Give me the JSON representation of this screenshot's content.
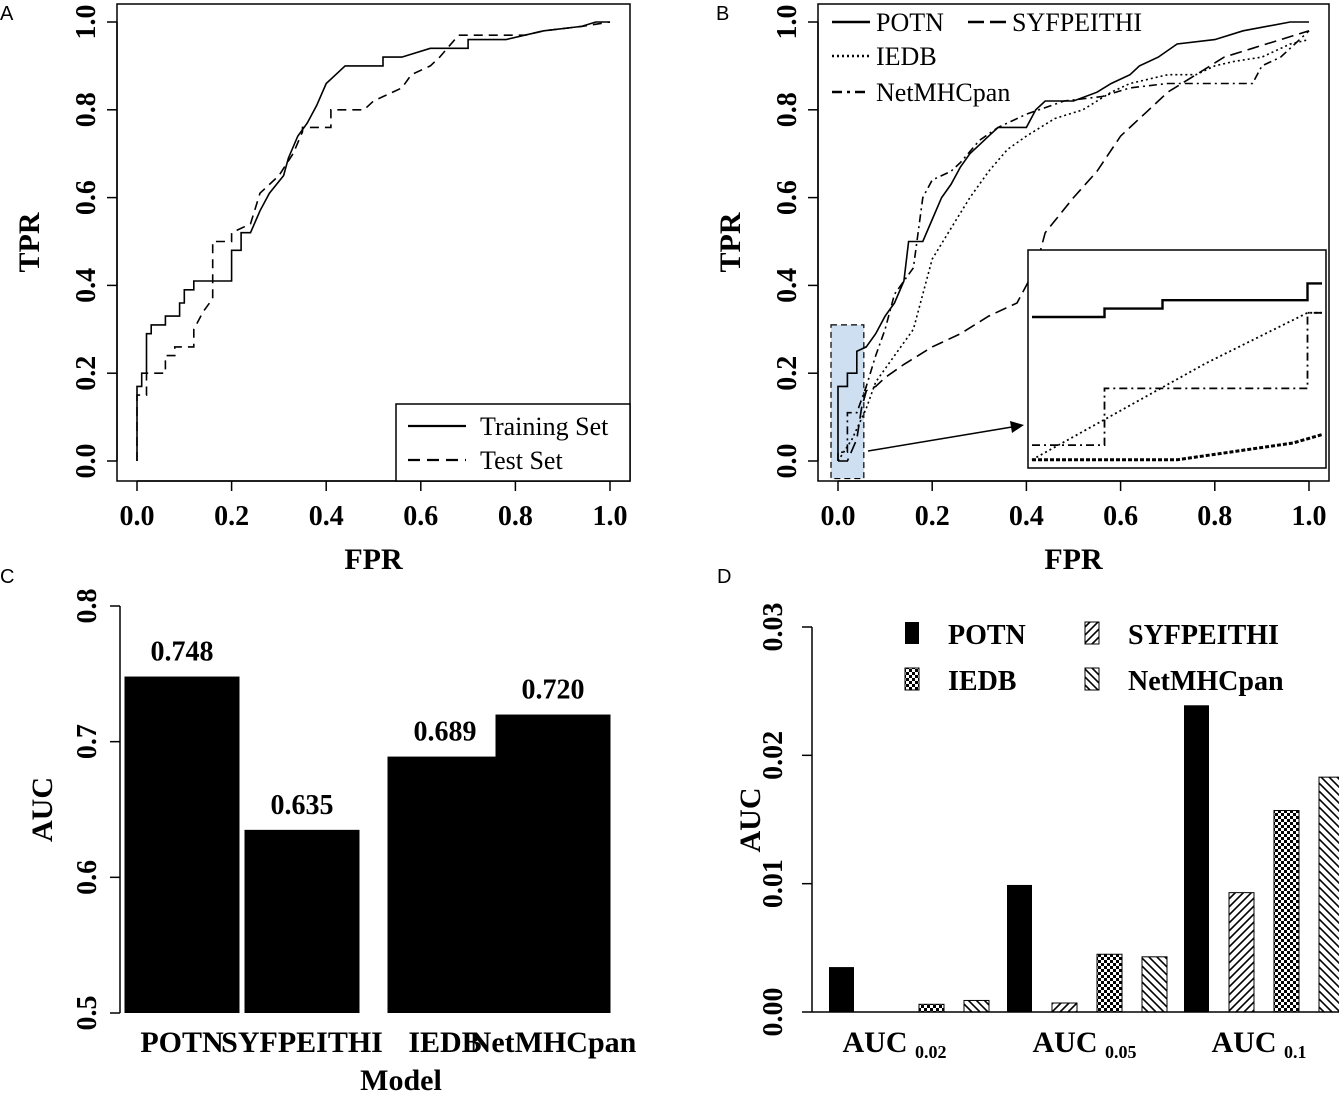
{
  "chart_data": [
    {
      "panel": "A",
      "type": "line",
      "xlabel": "FPR",
      "ylabel": "TPR",
      "xlim": [
        0,
        1
      ],
      "ylim": [
        0,
        1
      ],
      "xticks": [
        "0.0",
        "0.2",
        "0.4",
        "0.6",
        "0.8",
        "1.0"
      ],
      "yticks": [
        "0.0",
        "0.2",
        "0.4",
        "0.6",
        "0.8",
        "1.0"
      ],
      "legend": [
        "Training Set",
        "Test Set"
      ],
      "series": [
        {
          "name": "Training Set",
          "style": "solid",
          "points": [
            [
              0,
              0
            ],
            [
              0,
              0.17
            ],
            [
              0.01,
              0.17
            ],
            [
              0.01,
              0.2
            ],
            [
              0.02,
              0.2
            ],
            [
              0.02,
              0.29
            ],
            [
              0.03,
              0.29
            ],
            [
              0.03,
              0.31
            ],
            [
              0.06,
              0.31
            ],
            [
              0.06,
              0.33
            ],
            [
              0.09,
              0.33
            ],
            [
              0.09,
              0.36
            ],
            [
              0.1,
              0.36
            ],
            [
              0.1,
              0.39
            ],
            [
              0.12,
              0.39
            ],
            [
              0.12,
              0.41
            ],
            [
              0.2,
              0.41
            ],
            [
              0.2,
              0.48
            ],
            [
              0.22,
              0.48
            ],
            [
              0.22,
              0.52
            ],
            [
              0.24,
              0.52
            ],
            [
              0.26,
              0.57
            ],
            [
              0.28,
              0.61
            ],
            [
              0.31,
              0.65
            ],
            [
              0.32,
              0.69
            ],
            [
              0.34,
              0.74
            ],
            [
              0.36,
              0.77
            ],
            [
              0.38,
              0.81
            ],
            [
              0.4,
              0.86
            ],
            [
              0.42,
              0.88
            ],
            [
              0.44,
              0.9
            ],
            [
              0.52,
              0.9
            ],
            [
              0.52,
              0.92
            ],
            [
              0.56,
              0.92
            ],
            [
              0.62,
              0.94
            ],
            [
              0.7,
              0.94
            ],
            [
              0.7,
              0.96
            ],
            [
              0.78,
              0.96
            ],
            [
              0.86,
              0.98
            ],
            [
              0.94,
              0.99
            ],
            [
              0.97,
              1.0
            ],
            [
              1.0,
              1.0
            ]
          ]
        },
        {
          "name": "Test Set",
          "style": "dashed",
          "points": [
            [
              0,
              0
            ],
            [
              0,
              0.15
            ],
            [
              0.02,
              0.15
            ],
            [
              0.02,
              0.2
            ],
            [
              0.06,
              0.2
            ],
            [
              0.06,
              0.24
            ],
            [
              0.08,
              0.24
            ],
            [
              0.08,
              0.26
            ],
            [
              0.12,
              0.26
            ],
            [
              0.12,
              0.3
            ],
            [
              0.14,
              0.34
            ],
            [
              0.16,
              0.37
            ],
            [
              0.16,
              0.5
            ],
            [
              0.2,
              0.5
            ],
            [
              0.2,
              0.52
            ],
            [
              0.24,
              0.54
            ],
            [
              0.26,
              0.61
            ],
            [
              0.3,
              0.65
            ],
            [
              0.33,
              0.7
            ],
            [
              0.35,
              0.75
            ],
            [
              0.35,
              0.76
            ],
            [
              0.41,
              0.76
            ],
            [
              0.41,
              0.8
            ],
            [
              0.48,
              0.8
            ],
            [
              0.5,
              0.82
            ],
            [
              0.56,
              0.85
            ],
            [
              0.58,
              0.88
            ],
            [
              0.62,
              0.9
            ],
            [
              0.64,
              0.92
            ],
            [
              0.68,
              0.97
            ],
            [
              0.72,
              0.97
            ],
            [
              0.82,
              0.97
            ],
            [
              0.86,
              0.98
            ],
            [
              0.94,
              0.99
            ],
            [
              1.0,
              1.0
            ]
          ]
        }
      ]
    },
    {
      "panel": "B",
      "type": "line",
      "xlabel": "FPR",
      "ylabel": "TPR",
      "xlim": [
        0,
        1
      ],
      "ylim": [
        0,
        1
      ],
      "xticks": [
        "0.0",
        "0.2",
        "0.4",
        "0.6",
        "0.8",
        "1.0"
      ],
      "yticks": [
        "0.0",
        "0.2",
        "0.4",
        "0.6",
        "0.8",
        "1.0"
      ],
      "legend": [
        "POTN",
        "SYFPEITHI",
        "IEDB",
        "NetMHCpan"
      ],
      "series": [
        {
          "name": "POTN",
          "style": "solid",
          "points": [
            [
              0,
              0
            ],
            [
              0,
              0.17
            ],
            [
              0.02,
              0.17
            ],
            [
              0.02,
              0.2
            ],
            [
              0.04,
              0.2
            ],
            [
              0.04,
              0.25
            ],
            [
              0.06,
              0.26
            ],
            [
              0.08,
              0.29
            ],
            [
              0.1,
              0.33
            ],
            [
              0.12,
              0.36
            ],
            [
              0.14,
              0.41
            ],
            [
              0.15,
              0.5
            ],
            [
              0.18,
              0.5
            ],
            [
              0.2,
              0.55
            ],
            [
              0.22,
              0.6
            ],
            [
              0.24,
              0.63
            ],
            [
              0.26,
              0.67
            ],
            [
              0.28,
              0.7
            ],
            [
              0.3,
              0.72
            ],
            [
              0.32,
              0.74
            ],
            [
              0.34,
              0.76
            ],
            [
              0.4,
              0.76
            ],
            [
              0.42,
              0.8
            ],
            [
              0.44,
              0.82
            ],
            [
              0.5,
              0.82
            ],
            [
              0.55,
              0.84
            ],
            [
              0.58,
              0.86
            ],
            [
              0.62,
              0.88
            ],
            [
              0.64,
              0.9
            ],
            [
              0.68,
              0.92
            ],
            [
              0.72,
              0.95
            ],
            [
              0.8,
              0.96
            ],
            [
              0.86,
              0.98
            ],
            [
              0.96,
              1.0
            ],
            [
              1.0,
              1.0
            ]
          ]
        },
        {
          "name": "SYFPEITHI",
          "style": "longdash",
          "points": [
            [
              0,
              0
            ],
            [
              0.02,
              0
            ],
            [
              0.04,
              0.05
            ],
            [
              0.05,
              0.12
            ],
            [
              0.06,
              0.16
            ],
            [
              0.08,
              0.17
            ],
            [
              0.1,
              0.19
            ],
            [
              0.14,
              0.22
            ],
            [
              0.2,
              0.26
            ],
            [
              0.26,
              0.29
            ],
            [
              0.32,
              0.33
            ],
            [
              0.38,
              0.36
            ],
            [
              0.42,
              0.44
            ],
            [
              0.44,
              0.52
            ],
            [
              0.5,
              0.6
            ],
            [
              0.55,
              0.66
            ],
            [
              0.6,
              0.74
            ],
            [
              0.66,
              0.8
            ],
            [
              0.7,
              0.84
            ],
            [
              0.76,
              0.88
            ],
            [
              0.82,
              0.92
            ],
            [
              0.88,
              0.94
            ],
            [
              0.94,
              0.96
            ],
            [
              1.0,
              0.98
            ]
          ]
        },
        {
          "name": "IEDB",
          "style": "dotted",
          "points": [
            [
              0,
              0
            ],
            [
              0.03,
              0.05
            ],
            [
              0.06,
              0.12
            ],
            [
              0.08,
              0.18
            ],
            [
              0.12,
              0.24
            ],
            [
              0.16,
              0.3
            ],
            [
              0.18,
              0.38
            ],
            [
              0.2,
              0.46
            ],
            [
              0.24,
              0.53
            ],
            [
              0.28,
              0.6
            ],
            [
              0.32,
              0.66
            ],
            [
              0.36,
              0.71
            ],
            [
              0.4,
              0.74
            ],
            [
              0.46,
              0.78
            ],
            [
              0.52,
              0.8
            ],
            [
              0.58,
              0.84
            ],
            [
              0.62,
              0.86
            ],
            [
              0.7,
              0.88
            ],
            [
              0.76,
              0.88
            ],
            [
              0.8,
              0.9
            ],
            [
              0.84,
              0.91
            ],
            [
              0.9,
              0.92
            ],
            [
              0.96,
              0.95
            ],
            [
              1.0,
              0.96
            ]
          ]
        },
        {
          "name": "NetMHCpan",
          "style": "dotdash",
          "points": [
            [
              0,
              0
            ],
            [
              0,
              0.02
            ],
            [
              0.02,
              0.02
            ],
            [
              0.02,
              0.11
            ],
            [
              0.04,
              0.11
            ],
            [
              0.06,
              0.17
            ],
            [
              0.08,
              0.24
            ],
            [
              0.1,
              0.3
            ],
            [
              0.12,
              0.38
            ],
            [
              0.14,
              0.41
            ],
            [
              0.16,
              0.44
            ],
            [
              0.18,
              0.6
            ],
            [
              0.2,
              0.64
            ],
            [
              0.24,
              0.66
            ],
            [
              0.26,
              0.68
            ],
            [
              0.3,
              0.73
            ],
            [
              0.34,
              0.76
            ],
            [
              0.4,
              0.79
            ],
            [
              0.48,
              0.82
            ],
            [
              0.56,
              0.83
            ],
            [
              0.62,
              0.85
            ],
            [
              0.7,
              0.86
            ],
            [
              0.84,
              0.86
            ],
            [
              0.88,
              0.86
            ],
            [
              0.9,
              0.9
            ],
            [
              0.94,
              0.92
            ],
            [
              0.98,
              0.96
            ],
            [
              1.0,
              0.98
            ]
          ]
        }
      ],
      "inset": {
        "annotation": "zoom of FPR 0.0-0.04 region",
        "series": [
          {
            "name": "POTN",
            "style": "solid",
            "points": [
              [
                0,
                0.7
              ],
              [
                0.25,
                0.7
              ],
              [
                0.25,
                0.74
              ],
              [
                0.45,
                0.74
              ],
              [
                0.45,
                0.78
              ],
              [
                0.95,
                0.78
              ],
              [
                0.95,
                0.86
              ],
              [
                1,
                0.86
              ]
            ]
          },
          {
            "name": "SYFPEITHI",
            "style": "longdash",
            "points": [
              [
                0,
                0.02
              ],
              [
                0.05,
                0.02
              ],
              [
                0.5,
                0.02
              ],
              [
                0.7,
                0.06
              ],
              [
                0.9,
                0.1
              ],
              [
                1,
                0.14
              ]
            ]
          },
          {
            "name": "IEDB",
            "style": "dotted",
            "points": [
              [
                0,
                0.02
              ],
              [
                0.3,
                0.25
              ],
              [
                0.6,
                0.48
              ],
              [
                0.95,
                0.72
              ],
              [
                1,
                0.72
              ]
            ]
          },
          {
            "name": "NetMHCpan",
            "style": "dotdash",
            "points": [
              [
                0,
                0.09
              ],
              [
                0.25,
                0.09
              ],
              [
                0.25,
                0.36
              ],
              [
                0.95,
                0.36
              ],
              [
                0.95,
                0.72
              ],
              [
                1,
                0.72
              ]
            ]
          }
        ]
      }
    },
    {
      "panel": "C",
      "type": "bar",
      "xlabel": "Model",
      "ylabel": "AUC",
      "ylim": [
        0.5,
        0.8
      ],
      "yticks": [
        "0.5",
        "0.6",
        "0.7",
        "0.8"
      ],
      "categories": [
        "POTN",
        "SYFPEITHI",
        "IEDB",
        "NetMHCpan"
      ],
      "values": [
        0.748,
        0.635,
        0.689,
        0.72
      ],
      "data_labels": [
        "0.748",
        "0.635",
        "0.689",
        "0.720"
      ]
    },
    {
      "panel": "D",
      "type": "bar",
      "xlabel": "",
      "ylabel": "AUC",
      "ylim": [
        0,
        0.03
      ],
      "yticks": [
        "0.00",
        "0.01",
        "0.02",
        "0.03"
      ],
      "categories": [
        {
          "main": "AUC",
          "sub": "0.02"
        },
        {
          "main": "AUC",
          "sub": "0.05"
        },
        {
          "main": "AUC",
          "sub": "0.1"
        }
      ],
      "legend": [
        "POTN",
        "SYFPEITHI",
        "IEDB",
        "NetMHCpan"
      ],
      "series": [
        {
          "name": "POTN",
          "pattern": "solid",
          "values": [
            0.0035,
            0.0099,
            0.0239
          ]
        },
        {
          "name": "SYFPEITHI",
          "pattern": "diagonal",
          "values": [
            0.0,
            0.0007,
            0.0093
          ]
        },
        {
          "name": "IEDB",
          "pattern": "checker",
          "values": [
            0.0006,
            0.0045,
            0.0157
          ]
        },
        {
          "name": "NetMHCpan",
          "pattern": "backdiagonal",
          "values": [
            0.0009,
            0.0043,
            0.0183
          ]
        }
      ]
    }
  ],
  "panels": {
    "a": "A",
    "b": "B",
    "c": "C",
    "d": "D"
  },
  "colors": {
    "ink": "#000000",
    "highlight": "#c6d9ee"
  }
}
